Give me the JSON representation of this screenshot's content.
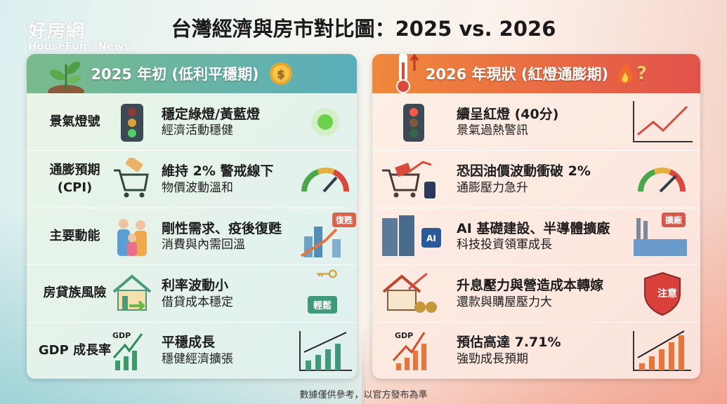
{
  "watermark": {
    "logo_cn": "好房網",
    "logo_en": "HouseFun | News"
  },
  "title": "台灣經濟與房市對比圖：2025 vs. 2026",
  "left": {
    "header": "2025 年初 (低利平穩期)",
    "accent": "#5aaebc",
    "rows": [
      {
        "label": "景氣燈號",
        "main": "穩定綠燈/黃藍燈",
        "sub": "經濟活動穩健",
        "icon": "traffic-light-icon",
        "right_icon": "green-light-icon"
      },
      {
        "label": "通膨預期",
        "label2": "(CPI)",
        "main": "維持 2% 警戒線下",
        "sub": "物價波動溫和",
        "icon": "shopping-cart-icon",
        "right_icon": "gauge-icon"
      },
      {
        "label": "主要動能",
        "main": "剛性需求、疫後復甦",
        "sub": "消費與內需回溫",
        "icon": "family-icon",
        "right_icon": "city-growth-icon",
        "badge": "復甦"
      },
      {
        "label": "房貸族風險",
        "main": "利率波動小",
        "sub": "借貸成本穩定",
        "icon": "house-icon",
        "right_icon": "key-icon",
        "badge": "輕鬆"
      },
      {
        "label": "GDP 成長率",
        "main": "平穩成長",
        "sub": "穩健經濟擴張",
        "icon": "gdp-chart-icon",
        "icon_text": "GDP",
        "right_icon": "bar-chart-icon"
      }
    ]
  },
  "right": {
    "header": "2026 年現狀 (紅燈通膨期)",
    "accent": "#e2524a",
    "rows": [
      {
        "main": "續呈紅燈 (40分)",
        "sub": "景氣過熱警訊",
        "icon": "red-traffic-light-icon",
        "right_icon": "line-chart-icon"
      },
      {
        "main": "恐因油價波動衝破 2%",
        "sub": "通膨壓力急升",
        "icon": "cart-oil-icon",
        "right_icon": "gauge-icon"
      },
      {
        "main": "AI 基礎建設、半導體擴廠",
        "sub": "科技投資領軍成長",
        "icon": "server-ai-chip-icon",
        "icon_text": "AI",
        "right_icon": "factory-icon",
        "badge": "擴廠"
      },
      {
        "main": "升息壓力與營造成本轉嫁",
        "sub": "還款與購屋壓力大",
        "icon": "house-money-icon",
        "right_icon": "shield-icon",
        "badge": "注意"
      },
      {
        "main": "預估高達 7.71%",
        "sub": "強勁成長預期",
        "icon": "gdp-chart-icon",
        "icon_text": "GDP",
        "right_icon": "bar-chart-icon"
      }
    ]
  },
  "footer": "數據僅供參考，以官方發布為準"
}
